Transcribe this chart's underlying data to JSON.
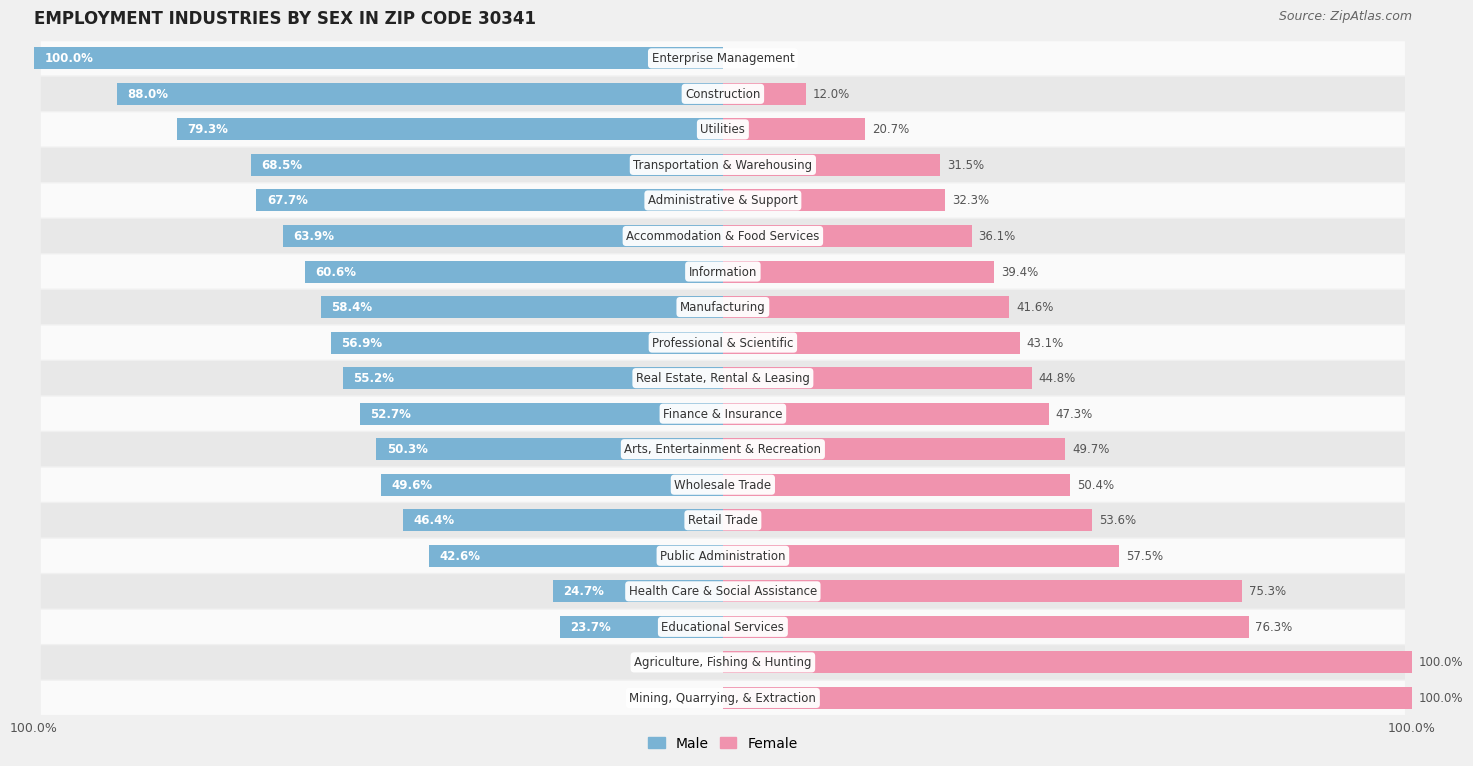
{
  "title": "EMPLOYMENT INDUSTRIES BY SEX IN ZIP CODE 30341",
  "source": "Source: ZipAtlas.com",
  "categories": [
    "Enterprise Management",
    "Construction",
    "Utilities",
    "Transportation & Warehousing",
    "Administrative & Support",
    "Accommodation & Food Services",
    "Information",
    "Manufacturing",
    "Professional & Scientific",
    "Real Estate, Rental & Leasing",
    "Finance & Insurance",
    "Arts, Entertainment & Recreation",
    "Wholesale Trade",
    "Retail Trade",
    "Public Administration",
    "Health Care & Social Assistance",
    "Educational Services",
    "Agriculture, Fishing & Hunting",
    "Mining, Quarrying, & Extraction"
  ],
  "male": [
    100.0,
    88.0,
    79.3,
    68.5,
    67.7,
    63.9,
    60.6,
    58.4,
    56.9,
    55.2,
    52.7,
    50.3,
    49.6,
    46.4,
    42.6,
    24.7,
    23.7,
    0.0,
    0.0
  ],
  "female": [
    0.0,
    12.0,
    20.7,
    31.5,
    32.3,
    36.1,
    39.4,
    41.6,
    43.1,
    44.8,
    47.3,
    49.7,
    50.4,
    53.6,
    57.5,
    75.3,
    76.3,
    100.0,
    100.0
  ],
  "male_color": "#7ab3d4",
  "female_color": "#f093ae",
  "background_color": "#f0f0f0",
  "row_light": "#fafafa",
  "row_dark": "#e8e8e8",
  "title_fontsize": 12,
  "label_fontsize": 8.5,
  "pct_fontsize": 8.5,
  "source_fontsize": 9
}
